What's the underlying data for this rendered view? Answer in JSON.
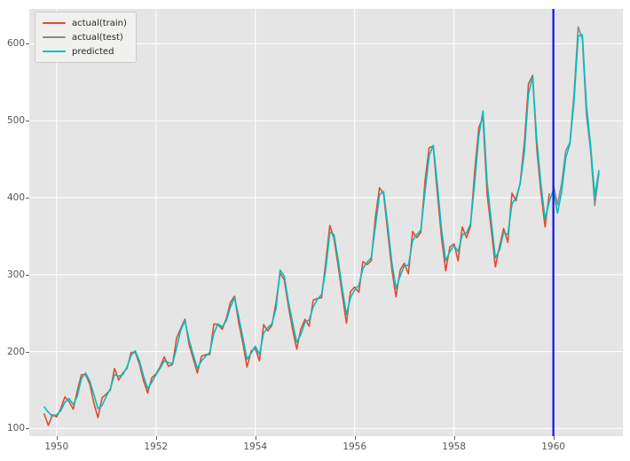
{
  "chart_data": {
    "type": "line",
    "title": "",
    "xlabel": "",
    "ylabel": "",
    "grid": true,
    "plot_style": "ggplot-gray",
    "legend_position": "upper-left",
    "x_ticks": [
      1950,
      1952,
      1954,
      1956,
      1958,
      1960
    ],
    "y_ticks": [
      100,
      200,
      300,
      400,
      500,
      600
    ],
    "xlim": [
      1949.45,
      1961.4
    ],
    "ylim": [
      90,
      645.5
    ],
    "split_line": {
      "x": 1960,
      "color": "#1111ee"
    },
    "series": [
      {
        "name": "actual(train)",
        "color": "#e24a33",
        "start_year": 1949.75,
        "frequency": "monthly",
        "values": [
          119,
          104,
          118,
          115,
          126,
          141,
          135,
          125,
          149,
          170,
          170,
          158,
          133,
          114,
          140,
          145,
          150,
          178,
          163,
          172,
          178,
          199,
          199,
          184,
          162,
          146,
          166,
          171,
          180,
          193,
          181,
          183,
          218,
          230,
          242,
          209,
          191,
          172,
          194,
          196,
          196,
          236,
          235,
          229,
          243,
          264,
          272,
          237,
          211,
          180,
          201,
          204,
          188,
          235,
          227,
          234,
          264,
          302,
          293,
          259,
          229,
          203,
          229,
          242,
          233,
          267,
          269,
          270,
          315,
          364,
          347,
          312,
          274,
          237,
          278,
          284,
          277,
          317,
          313,
          318,
          374,
          413,
          405,
          355,
          306,
          271,
          306,
          315,
          301,
          356,
          348,
          355,
          422,
          465,
          467,
          404,
          347,
          305,
          336,
          340,
          318,
          362,
          348,
          363,
          435,
          491,
          505,
          404,
          359,
          310,
          337,
          360,
          342,
          406,
          396,
          420,
          472,
          548,
          559,
          463,
          407,
          362,
          405
        ]
      },
      {
        "name": "actual(test)",
        "color": "#8a8a8a",
        "start_year": 1960.0,
        "frequency": "monthly",
        "values": [
          417,
          391,
          419,
          461,
          472,
          535,
          622,
          606,
          508,
          461,
          390,
          432
        ]
      },
      {
        "name": "predicted",
        "color": "#00bfbf",
        "start_year": 1949.75,
        "frequency": "monthly",
        "values": [
          128,
          121,
          116,
          118,
          123,
          134,
          139,
          131,
          142,
          165,
          172,
          162,
          144,
          126,
          130,
          142,
          152,
          170,
          168,
          170,
          180,
          195,
          201,
          188,
          168,
          152,
          160,
          170,
          178,
          188,
          186,
          184,
          205,
          228,
          240,
          215,
          196,
          178,
          188,
          194,
          199,
          224,
          236,
          232,
          240,
          258,
          270,
          245,
          218,
          190,
          198,
          207,
          196,
          224,
          231,
          236,
          256,
          306,
          298,
          265,
          238,
          212,
          222,
          238,
          241,
          258,
          268,
          274,
          306,
          355,
          352,
          320,
          282,
          248,
          270,
          280,
          286,
          308,
          316,
          322,
          362,
          404,
          408,
          364,
          315,
          282,
          298,
          312,
          312,
          344,
          352,
          358,
          408,
          455,
          468,
          416,
          358,
          318,
          330,
          338,
          330,
          352,
          354,
          366,
          420,
          480,
          513,
          420,
          370,
          322,
          332,
          355,
          352,
          392,
          400,
          418,
          460,
          535,
          557,
          475,
          418,
          372,
          395,
          410,
          380,
          408,
          452,
          470,
          525,
          610,
          612,
          520,
          468,
          402,
          435
        ]
      }
    ]
  },
  "legend": {
    "items": [
      {
        "label": "actual(train)"
      },
      {
        "label": "actual(test)"
      },
      {
        "label": "predicted"
      }
    ]
  },
  "colors": {
    "figure_bg": "#ffffff",
    "plot_bg": "#e5e5e5",
    "gridline": "#ffffff",
    "tick_text": "#555555",
    "tick_mark": "#606060",
    "legend_bg": "#f0f0ee",
    "legend_border": "#cccccc"
  }
}
